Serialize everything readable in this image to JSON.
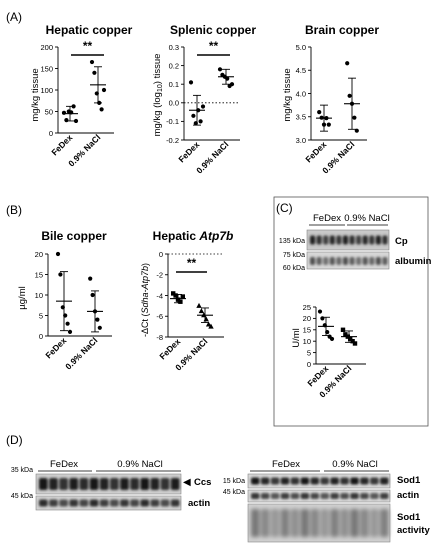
{
  "panel_labels": {
    "A": "(A)",
    "B": "(B)",
    "C": "(C)",
    "D": "(D)"
  },
  "charts": {
    "hepatic_copper": {
      "title": "Hepatic copper",
      "ylabel": "mg/kg tissue",
      "sig": "**"
    },
    "splenic_copper": {
      "title": "Splenic copper",
      "ylabel_pre": "mg/kg (log",
      "ylabel_sub": "10",
      "ylabel_post": ") tissue",
      "sig": "**"
    },
    "brain_copper": {
      "title": "Brain copper",
      "ylabel": "mg/kg tissue"
    },
    "bile_copper": {
      "title": "Bile copper",
      "ylabel": "µg/ml"
    },
    "hepatic_atp7b": {
      "title_pre": "Hepatic ",
      "title_italic": "Atp7b",
      "ylabel_pre": "-ΔCt (",
      "ylabel_italic": "Sdha-Atp7b",
      "ylabel_post": ")",
      "sig": "**"
    },
    "cp_activity": {
      "ylabel": "U/ml"
    }
  },
  "blots": {
    "C": {
      "group1": "FeDex",
      "group2": "0.9% NaCl",
      "mw1": "135 kDa",
      "mw2": "75 kDa",
      "mw3": "60 kDa",
      "band1": "Cp",
      "band2": "albumin"
    },
    "D_left": {
      "group1": "FeDex",
      "group2": "0.9% NaCl",
      "mw1": "35 kDa",
      "mw2": "45 kDa",
      "band1_arrow": "◀",
      "band1": "Ccs",
      "band2": "actin"
    },
    "D_right": {
      "group1": "FeDex",
      "group2": "0.9% NaCl",
      "mw1": "15 kDa",
      "mw2": "45 kDa",
      "band1": "Sod1",
      "band2": "actin",
      "band3_line1": "Sod1",
      "band3_line2": "activity"
    }
  },
  "chart_data": [
    {
      "type": "scatter",
      "title": "Hepatic copper",
      "ylabel": "mg/kg tissue",
      "categories": [
        "FeDex",
        "0.9% NaCl"
      ],
      "ylim": [
        0,
        200
      ],
      "yticks": [
        0,
        50,
        100,
        150,
        200
      ],
      "series": [
        {
          "values": [
            [
              47,
              30,
              50,
              48,
              62,
              28
            ],
            [
              165,
              140,
              92,
              70,
              55,
              100
            ]
          ],
          "mean": [
            45,
            112
          ],
          "sd": [
            17,
            42
          ]
        }
      ]
    },
    {
      "type": "scatter",
      "title": "Splenic copper",
      "ylabel": "mg/kg (log10) tissue",
      "categories": [
        "FeDex",
        "0.9% NaCl"
      ],
      "ylim": [
        -0.2,
        0.3
      ],
      "yticks": [
        -0.2,
        -0.1,
        0.0,
        0.1,
        0.2,
        0.3
      ],
      "reference_line": 0.0,
      "series": [
        {
          "values": [
            [
              0.11,
              -0.07,
              -0.11,
              -0.04,
              -0.1,
              -0.02
            ],
            [
              0.18,
              0.15,
              0.14,
              0.13,
              0.09,
              0.1
            ]
          ],
          "mean": [
            -0.04,
            0.14
          ],
          "sd": [
            0.08,
            0.04
          ]
        }
      ]
    },
    {
      "type": "scatter",
      "title": "Brain copper",
      "ylabel": "mg/kg tissue",
      "categories": [
        "FeDex",
        "0.9% NaCl"
      ],
      "ylim": [
        3.0,
        5.0
      ],
      "yticks": [
        3.0,
        3.5,
        4.0,
        4.5,
        5.0
      ],
      "series": [
        {
          "values": [
            [
              3.6,
              3.48,
              3.33,
              3.47,
              3.33
            ],
            [
              4.65,
              3.95,
              3.78,
              3.48,
              3.2
            ]
          ],
          "mean": [
            3.47,
            3.78
          ],
          "sd": [
            0.28,
            0.55
          ]
        }
      ]
    },
    {
      "type": "scatter",
      "title": "Bile copper",
      "ylabel": "µg/ml",
      "categories": [
        "FeDex",
        "0.9% NaCl"
      ],
      "ylim": [
        0,
        20
      ],
      "yticks": [
        0,
        5,
        10,
        15,
        20
      ],
      "series": [
        {
          "values": [
            [
              20,
              15,
              7,
              5,
              3,
              1
            ],
            [
              14,
              10,
              6,
              4,
              2
            ]
          ],
          "mean": [
            8.5,
            6
          ],
          "sd": [
            7.2,
            5
          ]
        }
      ]
    },
    {
      "type": "scatter",
      "title": "Hepatic Atp7b",
      "ylabel": "-ΔCt (Sdha-Atp7b)",
      "categories": [
        "FeDex",
        "0.9% NaCl"
      ],
      "ylim": [
        -8,
        0
      ],
      "yticks": [
        -8,
        -6,
        -4,
        -2,
        0
      ],
      "reference_line": 0,
      "series": [
        {
          "values": [
            [
              -3.8,
              -4.0,
              -4.4,
              -4.6,
              -4.1
            ],
            [
              -5.0,
              -5.5,
              -5.9,
              -6.3,
              -6.8,
              -7.0
            ]
          ],
          "mean": [
            -4.3,
            -5.9
          ],
          "sd": [
            0.4,
            0.7
          ]
        }
      ]
    },
    {
      "type": "scatter",
      "title": "",
      "ylabel": "U/ml",
      "categories": [
        "FeDex",
        "0.9% NaCl"
      ],
      "ylim": [
        0,
        25
      ],
      "yticks": [
        0,
        5,
        10,
        15,
        20,
        25
      ],
      "series": [
        {
          "values": [
            [
              23,
              20,
              17,
              14,
              12,
              11
            ],
            [
              15,
              13,
              12,
              11,
              10,
              9
            ]
          ],
          "mean": [
            16.5,
            12
          ],
          "sd": [
            4,
            2.5
          ]
        }
      ]
    }
  ]
}
